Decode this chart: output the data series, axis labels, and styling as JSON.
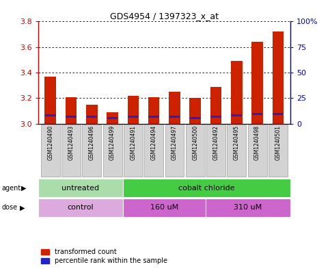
{
  "title": "GDS4954 / 1397323_x_at",
  "samples": [
    "GSM1240490",
    "GSM1240493",
    "GSM1240496",
    "GSM1240499",
    "GSM1240491",
    "GSM1240494",
    "GSM1240497",
    "GSM1240500",
    "GSM1240492",
    "GSM1240495",
    "GSM1240498",
    "GSM1240501"
  ],
  "red_values": [
    3.37,
    3.21,
    3.15,
    3.09,
    3.22,
    3.21,
    3.25,
    3.2,
    3.29,
    3.49,
    3.64,
    3.72
  ],
  "blue_values": [
    3.065,
    3.055,
    3.055,
    3.045,
    3.055,
    3.055,
    3.055,
    3.045,
    3.055,
    3.065,
    3.075,
    3.075
  ],
  "ymin": 3.0,
  "ymax": 3.8,
  "yticks": [
    3.0,
    3.2,
    3.4,
    3.6,
    3.8
  ],
  "y2ticks": [
    0,
    25,
    50,
    75,
    100
  ],
  "agent_labels": [
    "untreated",
    "cobalt chloride"
  ],
  "agent_colors": [
    "#aaddaa",
    "#44cc44"
  ],
  "dose_labels": [
    "control",
    "160 uM",
    "310 uM"
  ],
  "dose_colors": [
    "#ddaadd",
    "#cc66cc",
    "#cc66cc"
  ],
  "red_color": "#cc2200",
  "blue_color": "#2222cc",
  "background_color": "#ffffff",
  "tick_color_left": "#cc0000",
  "tick_color_right": "#0000cc",
  "legend_red": "transformed count",
  "legend_blue": "percentile rank within the sample"
}
